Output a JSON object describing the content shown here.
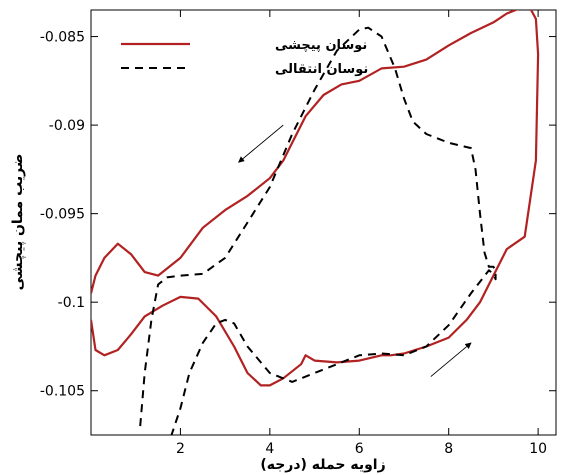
{
  "chart_data": {
    "type": "line",
    "title": "",
    "xlabel": "زاویه حمله (درجه)",
    "ylabel": "ضریب ممان پیچشی",
    "xlim": [
      0,
      10.4
    ],
    "ylim": [
      -0.1075,
      -0.0835
    ],
    "xticks": [
      2,
      4,
      6,
      8,
      10
    ],
    "yticks": [
      -0.085,
      -0.09,
      -0.095,
      -0.1,
      -0.105
    ],
    "xtick_labels": [
      "2",
      "4",
      "6",
      "8",
      "10"
    ],
    "ytick_labels": [
      "-0.085",
      "-0.09",
      "-0.095",
      "-0.1",
      "-0.105"
    ],
    "legend_position": "top-left",
    "series": [
      {
        "name": "نوسان پیچشی",
        "color": "#b22222",
        "style": "solid",
        "x": [
          0,
          0.1,
          0.3,
          0.6,
          0.9,
          1.2,
          1.5,
          2.0,
          2.5,
          3.0,
          3.5,
          4.0,
          4.3,
          4.5,
          4.8,
          5.2,
          5.6,
          6.0,
          6.5,
          7.0,
          7.5,
          8.0,
          8.5,
          9.0,
          9.3,
          9.6,
          9.8,
          9.95,
          10.0,
          9.95,
          9.7,
          9.3,
          9.0,
          8.7,
          8.4,
          8.0,
          7.5,
          7.0,
          6.7,
          6.5,
          6.0,
          5.5,
          5.0,
          4.8,
          4.7,
          4.3,
          4.0,
          3.8,
          3.5,
          3.2,
          2.8,
          2.4,
          2.0,
          1.6,
          1.2,
          0.9,
          0.6,
          0.3,
          0.1,
          0
        ],
        "y": [
          -0.0995,
          -0.0985,
          -0.0975,
          -0.0967,
          -0.0973,
          -0.0983,
          -0.0985,
          -0.0975,
          -0.0958,
          -0.0948,
          -0.094,
          -0.093,
          -0.092,
          -0.091,
          -0.0895,
          -0.0883,
          -0.0877,
          -0.0875,
          -0.0868,
          -0.0867,
          -0.0863,
          -0.0855,
          -0.0848,
          -0.0842,
          -0.0837,
          -0.0834,
          -0.0833,
          -0.084,
          -0.086,
          -0.092,
          -0.0963,
          -0.097,
          -0.0985,
          -0.1,
          -0.101,
          -0.102,
          -0.1025,
          -0.1029,
          -0.103,
          -0.103,
          -0.1033,
          -0.1034,
          -0.1033,
          -0.103,
          -0.1035,
          -0.1043,
          -0.1047,
          -0.1047,
          -0.104,
          -0.1025,
          -0.1008,
          -0.0998,
          -0.0997,
          -0.1002,
          -0.1008,
          -0.1018,
          -0.1027,
          -0.103,
          -0.1027,
          -0.101
        ]
      },
      {
        "name": "نوسان انتقالی",
        "color": "#000000",
        "style": "dashed",
        "x": [
          1.1,
          1.2,
          1.35,
          1.5,
          1.7,
          2.0,
          2.5,
          3.0,
          3.5,
          4.0,
          4.5,
          5.0,
          5.5,
          6.0,
          6.2,
          6.5,
          6.8,
          7.0,
          7.2,
          7.5,
          7.8,
          8.0,
          8.5,
          8.6,
          8.7,
          8.8,
          8.9,
          9.0,
          9.05,
          9.05,
          9.0,
          8.9,
          8.5,
          8.0,
          7.5,
          7.0,
          6.5,
          6.0,
          5.5,
          5.0,
          4.5,
          4.0,
          3.5,
          3.2,
          3.0,
          2.8,
          2.5,
          2.2,
          2.0,
          1.8,
          1.5,
          1.3,
          1.1
        ],
        "y": [
          -0.107,
          -0.104,
          -0.101,
          -0.099,
          -0.0986,
          -0.0985,
          -0.0984,
          -0.0975,
          -0.0955,
          -0.0935,
          -0.0905,
          -0.088,
          -0.0858,
          -0.0846,
          -0.0845,
          -0.085,
          -0.0868,
          -0.0885,
          -0.0898,
          -0.0905,
          -0.0908,
          -0.091,
          -0.0913,
          -0.0925,
          -0.095,
          -0.0972,
          -0.098,
          -0.098,
          -0.0982,
          -0.0987,
          -0.0984,
          -0.0982,
          -0.0995,
          -0.1013,
          -0.1025,
          -0.103,
          -0.1029,
          -0.103,
          -0.1035,
          -0.104,
          -0.1045,
          -0.104,
          -0.1025,
          -0.1012,
          -0.101,
          -0.1012,
          -0.1023,
          -0.104,
          -0.106,
          -0.1075,
          -0.1085,
          -0.109,
          -0.108
        ]
      }
    ],
    "annotations": [
      {
        "type": "arrow",
        "from": [
          4.3,
          -0.09
        ],
        "to": [
          3.3,
          -0.0921
        ]
      },
      {
        "type": "arrow",
        "from": [
          7.6,
          -0.1042
        ],
        "to": [
          8.5,
          -0.1023
        ]
      }
    ]
  }
}
